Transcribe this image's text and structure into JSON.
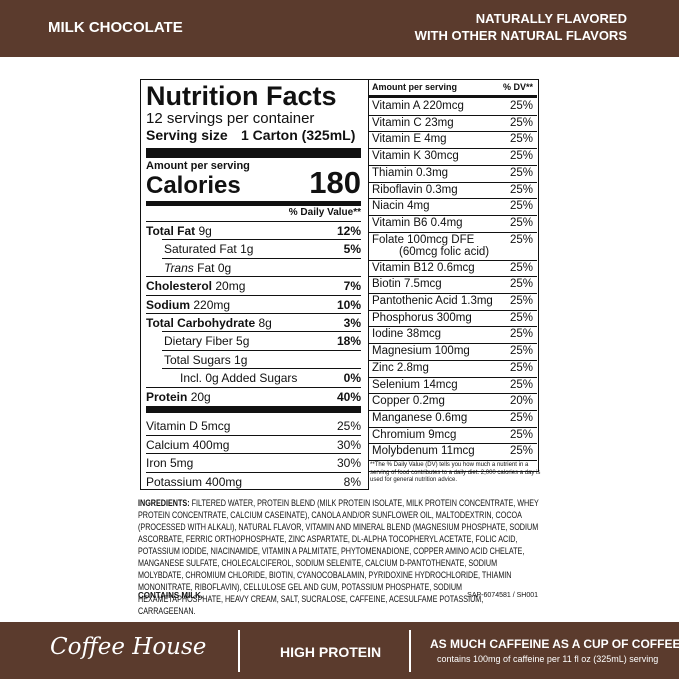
{
  "header": {
    "product": "MILK CHOCOLATE",
    "flavor_lines": [
      "NATURALLY FLAVORED",
      "WITH OTHER NATURAL FLAVORS"
    ]
  },
  "facts": {
    "title": "Nutrition Facts",
    "servings": "12 servings per container",
    "serving_size_label": "Serving size",
    "serving_size": "1 Carton (325mL)",
    "amount_per_serving": "Amount per serving",
    "calories_label": "Calories",
    "calories": "180",
    "dv_header": "% Daily Value**",
    "nutrients": [
      {
        "name": "Total Fat",
        "amount": "9g",
        "dv": "12%",
        "bold": true,
        "level": 0
      },
      {
        "name": "Saturated Fat",
        "amount": "1g",
        "dv": "5%",
        "bold": false,
        "level": 1
      },
      {
        "italic": "Trans",
        "name": "Fat",
        "amount": "0g",
        "bold": false,
        "level": 1
      },
      {
        "name": "Cholesterol",
        "amount": "20mg",
        "dv": "7%",
        "bold": true,
        "level": 0
      },
      {
        "name": "Sodium",
        "amount": "220mg",
        "dv": "10%",
        "bold": true,
        "level": 0
      },
      {
        "name": "Total Carbohydrate",
        "amount": "8g",
        "dv": "3%",
        "bold": true,
        "level": 0
      },
      {
        "name": "Dietary Fiber",
        "amount": "5g",
        "dv": "18%",
        "bold": false,
        "level": 1
      },
      {
        "name": "Total Sugars",
        "amount": "1g",
        "bold": false,
        "level": 1
      },
      {
        "name": "Incl. 0g Added Sugars",
        "dv": "0%",
        "bold": false,
        "level": 2
      },
      {
        "name": "Protein",
        "amount": "20g",
        "dv": "40%",
        "bold": true,
        "level": 0
      }
    ],
    "minerals": [
      {
        "name": "Vitamin D 5mcg",
        "dv": "25%"
      },
      {
        "name": "Calcium 400mg",
        "dv": "30%"
      },
      {
        "name": "Iron 5mg",
        "dv": "30%"
      },
      {
        "name": "Potassium 400mg",
        "dv": "8%"
      }
    ]
  },
  "supplement": {
    "amount_header": "Amount per serving",
    "dv_header": "% DV**",
    "rows": [
      {
        "name": "Vitamin A 220mcg",
        "dv": "25%"
      },
      {
        "name": "Vitamin C 23mg",
        "dv": "25%"
      },
      {
        "name": "Vitamin E 4mg",
        "dv": "25%"
      },
      {
        "name": "Vitamin K 30mcg",
        "dv": "25%"
      },
      {
        "name": "Thiamin 0.3mg",
        "dv": "25%"
      },
      {
        "name": "Riboflavin 0.3mg",
        "dv": "25%"
      },
      {
        "name": "Niacin 4mg",
        "dv": "25%"
      },
      {
        "name": "Vitamin B6 0.4mg",
        "dv": "25%"
      },
      {
        "name": "Folate 100mcg DFE",
        "note": "(60mcg folic acid)",
        "dv": "25%"
      },
      {
        "name": "Vitamin B12 0.6mcg",
        "dv": "25%"
      },
      {
        "name": "Biotin 7.5mcg",
        "dv": "25%"
      },
      {
        "name": "Pantothenic Acid 1.3mg",
        "dv": "25%"
      },
      {
        "name": "Phosphorus 300mg",
        "dv": "25%"
      },
      {
        "name": "Iodine 38mcg",
        "dv": "25%"
      },
      {
        "name": "Magnesium 100mg",
        "dv": "25%"
      },
      {
        "name": "Zinc 2.8mg",
        "dv": "25%"
      },
      {
        "name": "Selenium 14mcg",
        "dv": "25%"
      },
      {
        "name": "Copper 0.2mg",
        "dv": "20%"
      },
      {
        "name": "Manganese 0.6mg",
        "dv": "25%"
      },
      {
        "name": "Chromium 9mcg",
        "dv": "25%"
      },
      {
        "name": "Molybdenum 11mcg",
        "dv": "25%"
      }
    ],
    "footnote": "**The % Daily Value (DV) tells you how much a nutrient in a serving of food contributes to a daily diet. 2,000 calories a day is used for general nutrition advice."
  },
  "ingredients": {
    "label": "INGREDIENTS:",
    "text": "FILTERED WATER, PROTEIN BLEND (MILK PROTEIN ISOLATE, MILK PROTEIN CONCENTRATE, WHEY PROTEIN CONCENTRATE, CALCIUM CASEINATE), CANOLA AND/OR SUNFLOWER OIL, MALTODEXTRIN, COCOA (PROCESSED WITH ALKALI), NATURAL FLAVOR, VITAMIN AND MINERAL BLEND (MAGNESIUM PHOSPHATE, SODIUM ASCORBATE, FERRIC ORTHOPHOSPHATE, ZINC ASPARTATE, DL-ALPHA TOCOPHERYL ACETATE, FOLIC ACID, POTASSIUM IODIDE, NIACINAMIDE, VITAMIN A PALMITATE, PHYTOMENADIONE, COPPER AMINO ACID CHELATE, MANGANESE SULFATE, CHOLECALCIFEROL, SODIUM SELENITE, CALCIUM D-PANTOTHENATE, SODIUM MOLYBDATE, CHROMIUM CHLORIDE, BIOTIN, CYANOCOBALAMIN, PYRIDOXINE HYDROCHLORIDE, THIAMIN MONONITRATE, RIBOFLAVIN), CELLULOSE GEL AND GUM, POTASSIUM PHOSPHATE, SODIUM HEXAMETAPHOSPHATE, HEAVY CREAM, SALT, SUCRALOSE, CAFFEINE, ACESULFAME POTASSIUM, CARRAGEENAN.",
    "allergen": "CONTAINS MILK.",
    "code": "SAP-6074581 / SH001"
  },
  "footer": {
    "brand": "Coffee House",
    "claim": "HIGH PROTEIN",
    "caffeine": "AS MUCH CAFFEINE AS A CUP OF COFFEE",
    "caffeine_note": "contains 100mg of caffeine per 11 fl oz (325mL) serving"
  }
}
